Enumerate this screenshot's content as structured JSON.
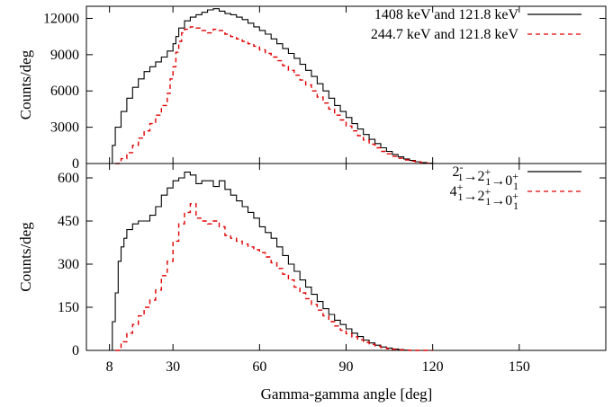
{
  "chart_data": [
    {
      "type": "line",
      "panel": "top",
      "xlabel": "",
      "ylabel": "Counts/deg",
      "xlim": [
        0,
        180
      ],
      "ylim": [
        0,
        13000
      ],
      "xticks": [
        8,
        30,
        60,
        90,
        120,
        150
      ],
      "yticks": [
        0,
        3000,
        6000,
        9000,
        12000
      ],
      "ytick_labels": [
        "0",
        "3000",
        "6000",
        "9000",
        "12000"
      ],
      "legend_position": "top-right",
      "series": [
        {
          "name": "1408 keV and 121.8 keV",
          "color": "#000000",
          "style": "solid-step",
          "points": [
            [
              8,
              0
            ],
            [
              9,
              1500
            ],
            [
              10,
              3000
            ],
            [
              12,
              4300
            ],
            [
              14,
              5400
            ],
            [
              16,
              6300
            ],
            [
              18,
              7000
            ],
            [
              20,
              7600
            ],
            [
              22,
              8000
            ],
            [
              24,
              8400
            ],
            [
              26,
              8800
            ],
            [
              28,
              9300
            ],
            [
              30,
              9900
            ],
            [
              31,
              10500
            ],
            [
              32,
              11200
            ],
            [
              34,
              11800
            ],
            [
              36,
              12100
            ],
            [
              38,
              12300
            ],
            [
              40,
              12500
            ],
            [
              42,
              12700
            ],
            [
              44,
              12800
            ],
            [
              46,
              12600
            ],
            [
              48,
              12400
            ],
            [
              50,
              12300
            ],
            [
              52,
              12100
            ],
            [
              54,
              11900
            ],
            [
              56,
              11600
            ],
            [
              58,
              11300
            ],
            [
              60,
              11000
            ],
            [
              62,
              10700
            ],
            [
              64,
              10300
            ],
            [
              66,
              9900
            ],
            [
              68,
              9500
            ],
            [
              70,
              9100
            ],
            [
              72,
              8700
            ],
            [
              74,
              8200
            ],
            [
              76,
              7700
            ],
            [
              78,
              7200
            ],
            [
              80,
              6600
            ],
            [
              82,
              6000
            ],
            [
              84,
              5400
            ],
            [
              86,
              4800
            ],
            [
              88,
              4300
            ],
            [
              90,
              3800
            ],
            [
              92,
              3300
            ],
            [
              94,
              2850
            ],
            [
              96,
              2400
            ],
            [
              98,
              2000
            ],
            [
              100,
              1650
            ],
            [
              102,
              1300
            ],
            [
              104,
              1000
            ],
            [
              106,
              750
            ],
            [
              108,
              550
            ],
            [
              110,
              380
            ],
            [
              112,
              250
            ],
            [
              114,
              150
            ],
            [
              116,
              80
            ],
            [
              118,
              30
            ],
            [
              120,
              0
            ]
          ]
        },
        {
          "name": "244.7 keV and 121.8 keV",
          "color": "#e00000",
          "style": "dashed-step",
          "points": [
            [
              10,
              0
            ],
            [
              12,
              400
            ],
            [
              14,
              900
            ],
            [
              16,
              1500
            ],
            [
              18,
              2100
            ],
            [
              20,
              2700
            ],
            [
              22,
              3300
            ],
            [
              24,
              4000
            ],
            [
              26,
              4800
            ],
            [
              28,
              5800
            ],
            [
              29,
              7000
            ],
            [
              30,
              8000
            ],
            [
              31,
              9200
            ],
            [
              32,
              10100
            ],
            [
              33,
              10800
            ],
            [
              34,
              11100
            ],
            [
              36,
              11300
            ],
            [
              38,
              11200
            ],
            [
              40,
              11000
            ],
            [
              42,
              10800
            ],
            [
              44,
              11100
            ],
            [
              46,
              11000
            ],
            [
              48,
              10700
            ],
            [
              50,
              10500
            ],
            [
              52,
              10300
            ],
            [
              54,
              10100
            ],
            [
              56,
              9900
            ],
            [
              58,
              9700
            ],
            [
              60,
              9400
            ],
            [
              62,
              9100
            ],
            [
              64,
              8800
            ],
            [
              66,
              8500
            ],
            [
              68,
              8100
            ],
            [
              70,
              7700
            ],
            [
              72,
              7300
            ],
            [
              74,
              6900
            ],
            [
              76,
              6500
            ],
            [
              78,
              6000
            ],
            [
              80,
              5500
            ],
            [
              82,
              5000
            ],
            [
              84,
              4500
            ],
            [
              86,
              4000
            ],
            [
              88,
              3600
            ],
            [
              90,
              3100
            ],
            [
              92,
              2700
            ],
            [
              94,
              2300
            ],
            [
              96,
              1950
            ],
            [
              98,
              1600
            ],
            [
              100,
              1300
            ],
            [
              102,
              1000
            ],
            [
              104,
              800
            ],
            [
              106,
              600
            ],
            [
              108,
              430
            ],
            [
              110,
              300
            ],
            [
              112,
              200
            ],
            [
              114,
              120
            ],
            [
              116,
              60
            ],
            [
              118,
              20
            ],
            [
              120,
              0
            ]
          ]
        }
      ]
    },
    {
      "type": "line",
      "panel": "bottom",
      "xlabel": "Gamma-gamma angle [deg]",
      "ylabel": "Counts/deg",
      "xlim": [
        0,
        180
      ],
      "ylim": [
        0,
        650
      ],
      "xticks": [
        8,
        30,
        60,
        90,
        120,
        150
      ],
      "xtick_labels": [
        "8",
        "30",
        "60",
        "90",
        "120",
        "150"
      ],
      "yticks": [
        0,
        150,
        300,
        450,
        600
      ],
      "ytick_labels": [
        "0",
        "150",
        "300",
        "450",
        "600"
      ],
      "legend_position": "top-right",
      "series": [
        {
          "name": "2₁⁻→2₁⁺→0₁⁺",
          "name_parts": [
            "2",
            "-",
            "1",
            "→",
            "2",
            "+",
            "1",
            "→",
            "0",
            "+",
            "1"
          ],
          "color": "#000000",
          "style": "solid-step",
          "points": [
            [
              8,
              0
            ],
            [
              9,
              100
            ],
            [
              10,
              200
            ],
            [
              11,
              310
            ],
            [
              12,
              360
            ],
            [
              13,
              390
            ],
            [
              14,
              420
            ],
            [
              16,
              440
            ],
            [
              18,
              450
            ],
            [
              20,
              450
            ],
            [
              22,
              470
            ],
            [
              24,
              500
            ],
            [
              26,
              540
            ],
            [
              28,
              565
            ],
            [
              30,
              590
            ],
            [
              32,
              600
            ],
            [
              34,
              620
            ],
            [
              36,
              610
            ],
            [
              38,
              580
            ],
            [
              40,
              590
            ],
            [
              42,
              590
            ],
            [
              44,
              570
            ],
            [
              46,
              590
            ],
            [
              48,
              560
            ],
            [
              50,
              540
            ],
            [
              52,
              520
            ],
            [
              54,
              500
            ],
            [
              56,
              480
            ],
            [
              58,
              460
            ],
            [
              60,
              430
            ],
            [
              62,
              410
            ],
            [
              64,
              390
            ],
            [
              66,
              360
            ],
            [
              68,
              330
            ],
            [
              70,
              300
            ],
            [
              72,
              275
            ],
            [
              74,
              245
            ],
            [
              76,
              220
            ],
            [
              78,
              195
            ],
            [
              80,
              170
            ],
            [
              82,
              145
            ],
            [
              84,
              125
            ],
            [
              86,
              105
            ],
            [
              88,
              90
            ],
            [
              90,
              75
            ],
            [
              92,
              60
            ],
            [
              94,
              48
            ],
            [
              96,
              36
            ],
            [
              98,
              26
            ],
            [
              100,
              18
            ],
            [
              102,
              12
            ],
            [
              104,
              8
            ],
            [
              106,
              5
            ],
            [
              108,
              3
            ],
            [
              110,
              1
            ],
            [
              112,
              0
            ],
            [
              120,
              0
            ]
          ]
        },
        {
          "name": "4₁⁺→2₁⁺→0₁⁺",
          "name_parts": [
            "4",
            "+",
            "1",
            "→",
            "2",
            "+",
            "1",
            "→",
            "0",
            "+",
            "1"
          ],
          "color": "#e00000",
          "style": "dashed-step",
          "points": [
            [
              10,
              0
            ],
            [
              12,
              30
            ],
            [
              14,
              60
            ],
            [
              16,
              90
            ],
            [
              18,
              120
            ],
            [
              20,
              150
            ],
            [
              22,
              175
            ],
            [
              24,
              210
            ],
            [
              26,
              260
            ],
            [
              28,
              310
            ],
            [
              30,
              380
            ],
            [
              32,
              440
            ],
            [
              34,
              480
            ],
            [
              36,
              510
            ],
            [
              38,
              460
            ],
            [
              40,
              450
            ],
            [
              42,
              440
            ],
            [
              44,
              450
            ],
            [
              46,
              430
            ],
            [
              48,
              400
            ],
            [
              50,
              390
            ],
            [
              52,
              380
            ],
            [
              54,
              370
            ],
            [
              56,
              360
            ],
            [
              58,
              350
            ],
            [
              60,
              340
            ],
            [
              62,
              325
            ],
            [
              64,
              305
            ],
            [
              66,
              285
            ],
            [
              68,
              265
            ],
            [
              70,
              245
            ],
            [
              72,
              220
            ],
            [
              74,
              200
            ],
            [
              76,
              180
            ],
            [
              78,
              160
            ],
            [
              80,
              140
            ],
            [
              82,
              120
            ],
            [
              84,
              100
            ],
            [
              86,
              85
            ],
            [
              88,
              70
            ],
            [
              90,
              58
            ],
            [
              92,
              47
            ],
            [
              94,
              37
            ],
            [
              96,
              28
            ],
            [
              98,
              21
            ],
            [
              100,
              15
            ],
            [
              102,
              10
            ],
            [
              104,
              6
            ],
            [
              106,
              4
            ],
            [
              108,
              2
            ],
            [
              110,
              1
            ],
            [
              112,
              0
            ],
            [
              120,
              0
            ]
          ]
        }
      ]
    }
  ]
}
